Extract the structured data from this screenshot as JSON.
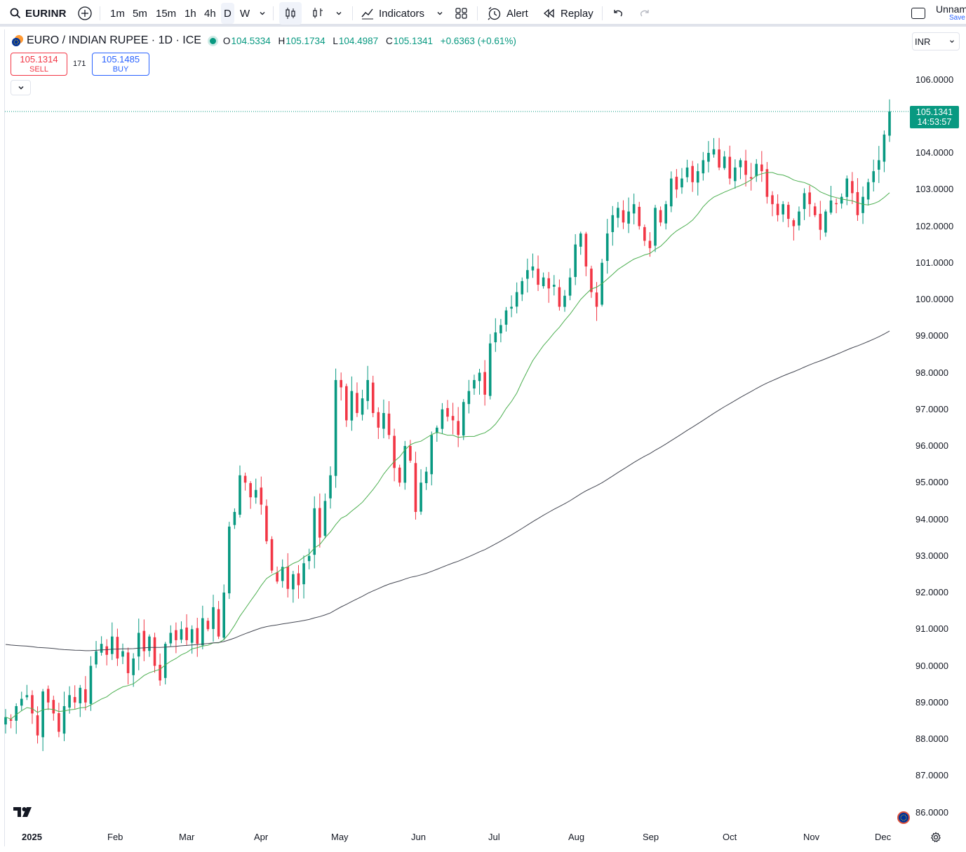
{
  "toolbar": {
    "symbol": "EURINR",
    "timeframes": [
      "1m",
      "5m",
      "15m",
      "1h",
      "4h",
      "D",
      "W"
    ],
    "active_timeframe": "D",
    "indicators_label": "Indicators",
    "alert_label": "Alert",
    "replay_label": "Replay",
    "layout_name": "Unnam",
    "save_label": "Save"
  },
  "legend": {
    "title": "EURO / INDIAN RUPEE · 1D · ICE",
    "open_key": "O",
    "open": "104.5334",
    "high_key": "H",
    "high": "105.1734",
    "low_key": "L",
    "low": "104.4987",
    "close_key": "C",
    "close": "105.1341",
    "change": "+0.6363 (+0.61%)"
  },
  "trade": {
    "sell_price": "105.1314",
    "sell_label": "SELL",
    "spread": "171",
    "buy_price": "105.1485",
    "buy_label": "BUY"
  },
  "currency": "INR",
  "last_price": {
    "price": "105.1341",
    "countdown": "14:53:57"
  },
  "price_axis": [
    "106.0000",
    "104.0000",
    "103.0000",
    "102.0000",
    "101.0000",
    "100.0000",
    "99.0000",
    "98.0000",
    "97.0000",
    "96.0000",
    "95.0000",
    "94.0000",
    "93.0000",
    "92.0000",
    "91.0000",
    "90.0000",
    "89.0000",
    "88.0000",
    "87.0000",
    "86.0000"
  ],
  "time_axis": [
    "2025",
    "Feb",
    "Mar",
    "Apr",
    "May",
    "Jun",
    "Jul",
    "Aug",
    "Sep",
    "Oct",
    "Nov",
    "Dec"
  ],
  "colors": {
    "up": "#089981",
    "down": "#f23645",
    "ma_short": "#4caf50",
    "ma_long": "#434651"
  },
  "chart_data": {
    "type": "candlestick",
    "x_range": [
      "2025-01-01",
      "2025-12-03"
    ],
    "ylim": [
      86,
      106
    ],
    "closes": [
      88.6,
      88.5,
      88.9,
      89.1,
      89.2,
      88.7,
      88.1,
      89.3,
      89.0,
      88.7,
      88.2,
      88.9,
      89.2,
      89.0,
      89.4,
      89.0,
      90.0,
      90.4,
      90.6,
      90.3,
      90.8,
      90.2,
      90.4,
      89.8,
      90.2,
      90.9,
      90.4,
      90.8,
      90.0,
      89.6,
      90.6,
      90.9,
      90.7,
      91.0,
      90.7,
      91.0,
      90.6,
      91.3,
      91.0,
      91.6,
      90.8,
      92.0,
      93.8,
      94.2,
      95.2,
      95.0,
      94.6,
      94.8,
      94.4,
      93.4,
      92.6,
      92.3,
      92.7,
      92.1,
      92.5,
      92.2,
      92.8,
      93.0,
      94.3,
      93.5,
      94.5,
      95.2,
      97.8,
      97.6,
      96.7,
      97.5,
      96.9,
      97.3,
      97.8,
      96.9,
      96.5,
      96.9,
      96.3,
      95.4,
      95.0,
      96.0,
      95.6,
      94.2,
      95.0,
      95.3,
      96.3,
      96.5,
      97.0,
      96.8,
      96.7,
      96.3,
      97.2,
      97.5,
      97.8,
      98.0,
      97.4,
      98.8,
      99.1,
      99.3,
      99.7,
      99.8,
      100.2,
      100.5,
      100.8,
      100.9,
      100.4,
      100.6,
      100.3,
      100.4,
      99.8,
      100.1,
      100.6,
      101.5,
      101.8,
      100.9,
      100.2,
      99.8,
      101.0,
      101.8,
      102.3,
      102.5,
      102.1,
      102.4,
      102.6,
      102.0,
      101.6,
      101.4,
      102.5,
      102.1,
      102.6,
      103.3,
      103.0,
      103.3,
      103.6,
      103.2,
      103.5,
      103.8,
      104.0,
      104.1,
      103.6,
      103.9,
      103.3,
      103.6,
      103.8,
      103.4,
      103.3,
      103.7,
      103.5,
      102.8,
      102.6,
      102.3,
      102.6,
      102.2,
      102.0,
      102.4,
      102.9,
      102.6,
      102.3,
      101.9,
      102.4,
      102.7,
      102.6,
      102.8,
      103.3,
      102.9,
      102.3,
      102.8,
      103.2,
      103.5,
      103.8,
      104.5,
      105.13
    ]
  }
}
